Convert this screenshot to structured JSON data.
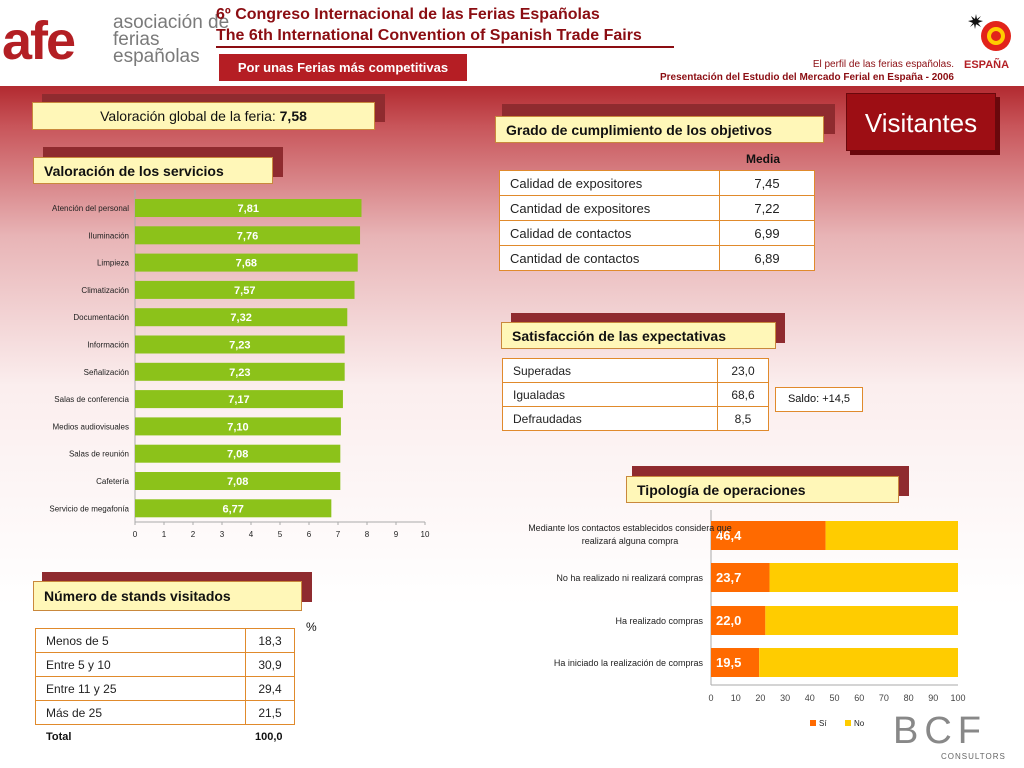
{
  "header": {
    "logo_mark": "afe",
    "logo_text": "asociación de ferias españolas",
    "title_es": "6º Congreso Internacional de las Ferias Españolas",
    "title_en": "The 6th International Convention of Spanish Trade Fairs",
    "tagline": "Por unas Ferias más competitivas",
    "profile_line1": "El perfil de las ferias españolas.",
    "profile_line2": "Presentación del Estudio del Mercado Ferial en España - 2006",
    "espana_logo_text": "ESPAÑA",
    "brand_color": "#b31f24"
  },
  "section_title": "Visitantes",
  "valoracion_global": {
    "label": "Valoración global de la feria:",
    "value": "7,58"
  },
  "servicios": {
    "title": "Valoración de los servicios",
    "chart_data": {
      "type": "bar",
      "orientation": "horizontal",
      "categories": [
        "Atención del personal",
        "Iluminación",
        "Limpieza",
        "Climatización",
        "Documentación",
        "Información",
        "Señalización",
        "Salas de conferencia",
        "Medios audiovisuales",
        "Salas de reunión",
        "Cafetería",
        "Servicio de megafonía"
      ],
      "values": [
        7.81,
        7.76,
        7.68,
        7.57,
        7.32,
        7.23,
        7.23,
        7.17,
        7.1,
        7.08,
        7.08,
        6.77
      ],
      "value_labels": [
        "7,81",
        "7,76",
        "7,68",
        "7,57",
        "7,32",
        "7,23",
        "7,23",
        "7,17",
        "7,10",
        "7,08",
        "7,08",
        "6,77"
      ],
      "xlim": [
        0,
        10
      ],
      "xticks": [
        "0",
        "1",
        "2",
        "3",
        "4",
        "5",
        "6",
        "7",
        "8",
        "9",
        "10"
      ],
      "color": "#8cc21a"
    }
  },
  "objetivos": {
    "title": "Grado de cumplimiento de los objetivos",
    "column_header": "Media",
    "rows": [
      {
        "label": "Calidad de expositores",
        "value": "7,45"
      },
      {
        "label": "Cantidad de expositores",
        "value": "7,22"
      },
      {
        "label": "Calidad de contactos",
        "value": "6,99"
      },
      {
        "label": "Cantidad de contactos",
        "value": "6,89"
      }
    ]
  },
  "expectativas": {
    "title": "Satisfacción de las expectativas",
    "rows": [
      {
        "label": "Superadas",
        "value": "23,0"
      },
      {
        "label": "Igualadas",
        "value": "68,6"
      },
      {
        "label": "Defraudadas",
        "value": "8,5"
      }
    ],
    "saldo": "Saldo: +14,5"
  },
  "operaciones": {
    "title": "Tipología de operaciones",
    "chart_data": {
      "type": "bar",
      "orientation": "horizontal",
      "stacked": true,
      "categories": [
        "Mediante los contactos establecidos considera que realizará alguna compra",
        "No ha realizado ni realizará compras",
        "Ha realizado compras",
        "Ha iniciado la realización de compras"
      ],
      "category_lines": [
        [
          "Mediante los contactos establecidos considera que",
          "realizará alguna compra"
        ],
        [
          "No ha realizado ni realizará compras"
        ],
        [
          "Ha realizado compras"
        ],
        [
          "Ha iniciado la realización de compras"
        ]
      ],
      "series": [
        {
          "name": "Sí",
          "values": [
            46.4,
            23.7,
            22.0,
            19.5
          ],
          "color": "#ff6a00"
        },
        {
          "name": "No",
          "values": [
            53.6,
            76.3,
            78.0,
            80.5
          ],
          "color": "#ffcc00"
        }
      ],
      "value_labels": [
        "46,4",
        "23,7",
        "22,0",
        "19,5"
      ],
      "xlim": [
        0,
        100
      ],
      "xticks": [
        "0",
        "10",
        "20",
        "30",
        "40",
        "50",
        "60",
        "70",
        "80",
        "90",
        "100"
      ],
      "legend": "bottom"
    }
  },
  "stands": {
    "title": "Número de stands visitados",
    "unit": "%",
    "rows": [
      {
        "label": "Menos de 5",
        "value": "18,3"
      },
      {
        "label": "Entre 5 y 10",
        "value": "30,9"
      },
      {
        "label": "Entre 11 y 25",
        "value": "29,4"
      },
      {
        "label": "Más de 25",
        "value": "21,5"
      }
    ],
    "total_label": "Total",
    "total_value": "100,0"
  },
  "footer": {
    "brand": "BCF",
    "brand_sub": "CONSULTORS"
  }
}
